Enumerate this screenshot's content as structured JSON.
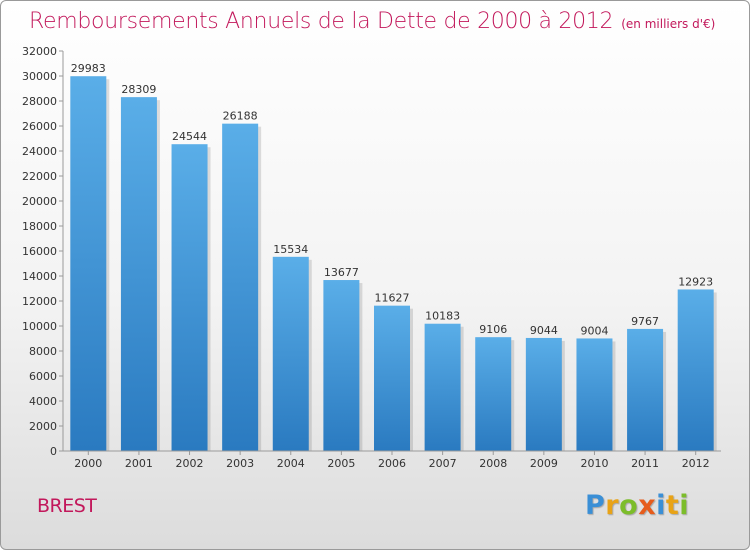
{
  "header": {
    "title": "Remboursements Annuels de la Dette de 2000 à 2012",
    "unit": "(en milliers d'€)"
  },
  "footer": {
    "city": "BREST",
    "logo_letters": [
      {
        "char": "P",
        "color": "#3a8fd6"
      },
      {
        "char": "r",
        "color": "#e8a317"
      },
      {
        "char": "o",
        "color": "#7cbd2a"
      },
      {
        "char": "x",
        "color": "#e65c1c"
      },
      {
        "char": "i",
        "color": "#3a8fd6"
      },
      {
        "char": "t",
        "color": "#e8a317"
      },
      {
        "char": "i",
        "color": "#7cbd2a"
      }
    ]
  },
  "chart_data": {
    "type": "bar",
    "categories": [
      "2000",
      "2001",
      "2002",
      "2003",
      "2004",
      "2005",
      "2006",
      "2007",
      "2008",
      "2009",
      "2010",
      "2011",
      "2012"
    ],
    "values": [
      29983,
      28309,
      24544,
      26188,
      15534,
      13677,
      11627,
      10183,
      9106,
      9044,
      9004,
      9767,
      12923
    ],
    "data_labels": [
      "29983",
      "28309",
      "24544",
      "26188",
      "15534",
      "13677",
      "11627",
      "10183",
      "9106",
      "9044",
      "9004",
      "9767",
      "12923"
    ],
    "ylim": [
      0,
      32000
    ],
    "yticks": [
      0,
      2000,
      4000,
      6000,
      8000,
      10000,
      12000,
      14000,
      16000,
      18000,
      20000,
      22000,
      24000,
      26000,
      28000,
      30000,
      32000
    ],
    "ytick_labels": [
      "0",
      "2000",
      "4000",
      "6000",
      "8000",
      "10000",
      "12000",
      "14000",
      "16000",
      "18000",
      "20000",
      "22000",
      "24000",
      "26000",
      "28000",
      "30000",
      "32000"
    ],
    "grid": false,
    "bar_color_top": "#5aaee8",
    "bar_color_bottom": "#2a7ac0"
  }
}
